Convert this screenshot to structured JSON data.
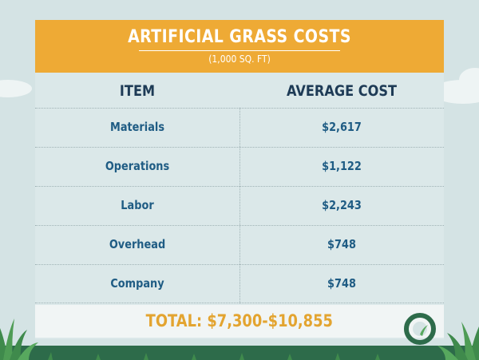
{
  "title": "ARTIFICIAL GRASS COSTS",
  "subtitle": "(1,000 SQ. FT)",
  "headers": {
    "item": "ITEM",
    "cost": "AVERAGE COST"
  },
  "rows": [
    {
      "item": "Materials",
      "cost": "$2,617"
    },
    {
      "item": "Operations",
      "cost": "$1,122"
    },
    {
      "item": "Labor",
      "cost": "$2,243"
    },
    {
      "item": "Overhead",
      "cost": "$748"
    },
    {
      "item": "Company",
      "cost": "$748"
    }
  ],
  "total": "TOTAL:  $7,300-$10,855",
  "colors": {
    "background": "#d4e3e4",
    "title_bar": "#eeaa35",
    "header_text": "#1e3b56",
    "row_text": "#1f5c84",
    "total_text": "#e3a430",
    "grass": "#2d6b4a"
  }
}
